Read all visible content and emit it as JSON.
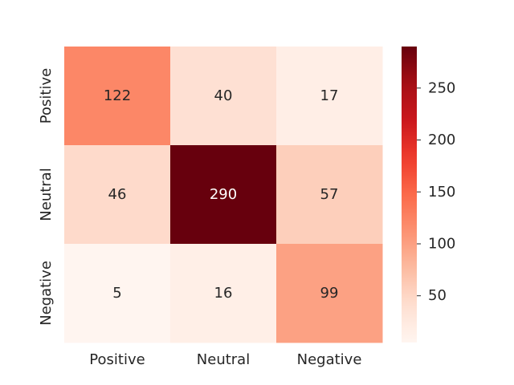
{
  "chart_data": {
    "type": "heatmap",
    "title": "",
    "xlabel": "",
    "ylabel": "",
    "x_categories": [
      "Positive",
      "Neutral",
      "Negative"
    ],
    "y_categories": [
      "Positive",
      "Neutral",
      "Negative"
    ],
    "values": [
      [
        122,
        40,
        17
      ],
      [
        46,
        290,
        57
      ],
      [
        5,
        16,
        99
      ]
    ],
    "colormap": "Reds",
    "colorbar": {
      "range": [
        5,
        290
      ],
      "ticks": [
        50,
        100,
        150,
        200,
        250
      ]
    },
    "grid": false
  }
}
